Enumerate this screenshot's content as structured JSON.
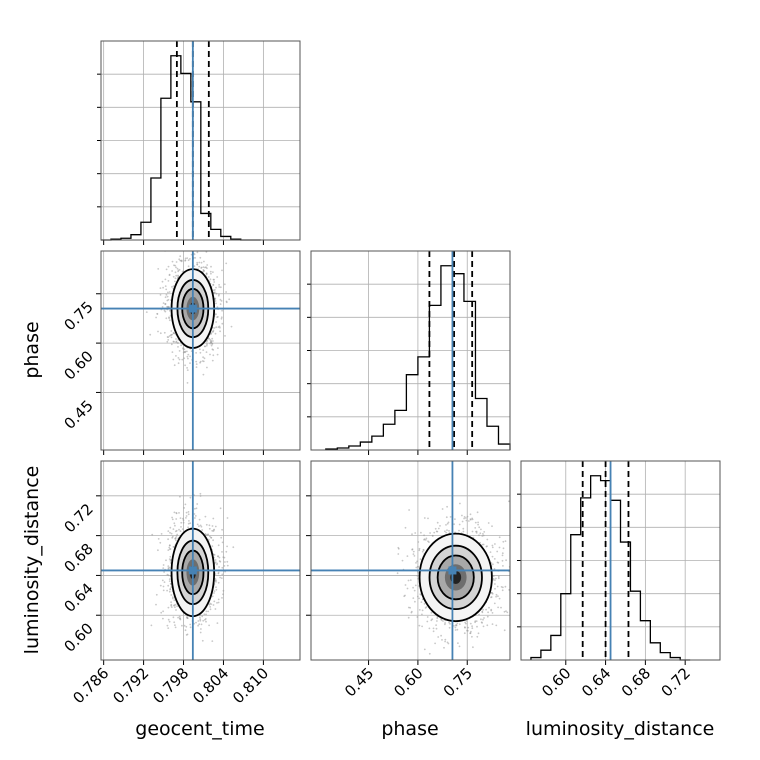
{
  "chart_data": {
    "type": "corner",
    "parameters": [
      "geocent_time",
      "phase",
      "luminosity_distance"
    ],
    "truths": {
      "geocent_time": 0.7994,
      "phase": 0.705,
      "luminosity_distance": 0.645
    },
    "ranges": {
      "geocent_time": [
        0.7856,
        0.8155
      ],
      "phase": [
        0.275,
        0.88
      ],
      "luminosity_distance": [
        0.555,
        0.755
      ]
    },
    "quantiles": {
      "geocent_time": [
        0.797,
        0.7994,
        0.8018
      ],
      "phase": [
        0.635,
        0.71,
        0.765
      ],
      "luminosity_distance": [
        0.617,
        0.64,
        0.663
      ]
    },
    "ticks": {
      "geocent_time": [
        "0.786",
        "0.792",
        "0.798",
        "0.804",
        "0.810"
      ],
      "phase": [
        "0.45",
        "0.60",
        "0.75"
      ],
      "luminosity_distance": [
        "0.60",
        "0.64",
        "0.68",
        "0.72"
      ]
    },
    "histograms": {
      "geocent_time": {
        "edges": [
          0.7856,
          0.7871,
          0.7886,
          0.7901,
          0.7916,
          0.7931,
          0.7946,
          0.7961,
          0.7976,
          0.7991,
          0.8006,
          0.8021,
          0.8036,
          0.8051,
          0.8066,
          0.8081,
          0.8096
        ],
        "counts": [
          0,
          0.5,
          1,
          3,
          10,
          35,
          80,
          104,
          94,
          78,
          15,
          6,
          2,
          0.5,
          0,
          0
        ]
      },
      "phase": {
        "edges": [
          0.32,
          0.355,
          0.39,
          0.425,
          0.46,
          0.495,
          0.53,
          0.565,
          0.6,
          0.635,
          0.67,
          0.705,
          0.74,
          0.775,
          0.81,
          0.845,
          0.88
        ],
        "counts": [
          0.5,
          1,
          2,
          4,
          7,
          13,
          20,
          38,
          47,
          73,
          93,
          89,
          75,
          26,
          12,
          3
        ]
      },
      "luminosity_distance": {
        "edges": [
          0.565,
          0.575,
          0.585,
          0.595,
          0.605,
          0.615,
          0.625,
          0.635,
          0.645,
          0.655,
          0.665,
          0.675,
          0.685,
          0.695,
          0.705,
          0.715,
          0.725
        ],
        "counts": [
          1,
          4,
          10,
          27,
          51,
          66,
          75,
          73,
          65,
          48,
          28,
          16,
          7,
          3,
          1,
          0
        ]
      }
    },
    "pairs": [
      {
        "x": "geocent_time",
        "y": "phase",
        "center": [
          0.7994,
          0.705
        ],
        "sigma": [
          0.0016,
          0.06
        ]
      },
      {
        "x": "geocent_time",
        "y": "luminosity_distance",
        "center": [
          0.7994,
          0.643
        ],
        "sigma": [
          0.0016,
          0.022
        ]
      },
      {
        "x": "phase",
        "y": "luminosity_distance",
        "center": [
          0.715,
          0.638
        ],
        "sigma": [
          0.055,
          0.022
        ]
      }
    ],
    "colors": {
      "truth": "#4682b4",
      "histogram": "#000000",
      "points": "#9a9a9a",
      "grid": "#b0b0b0"
    },
    "grid": true
  }
}
